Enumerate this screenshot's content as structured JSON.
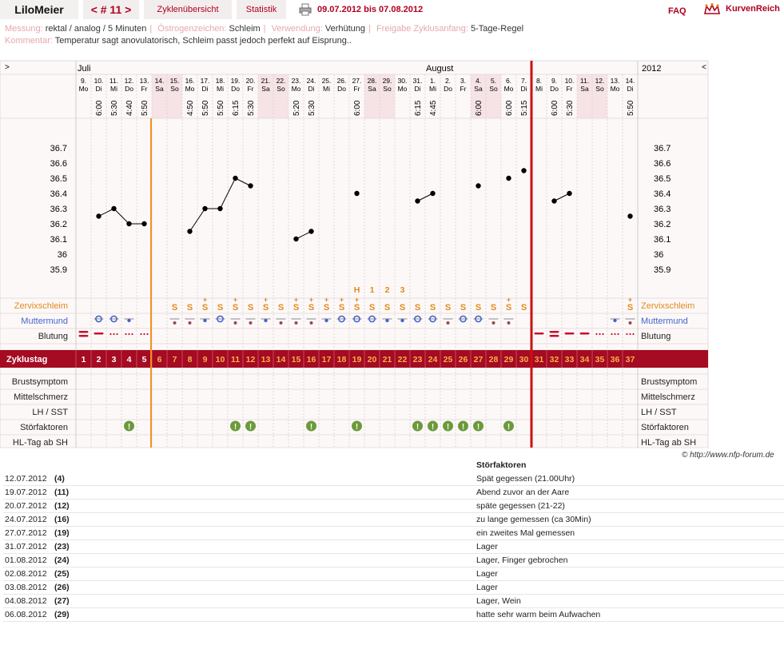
{
  "header": {
    "user_tab": "LiloMeier",
    "cycle_tab": "< # 11 >",
    "overview_tab": "Zyklenübersicht",
    "stats_tab": "Statistik",
    "date_range": "09.07.2012 bis 07.08.2012",
    "faq": "FAQ",
    "brand": "KurvenReich",
    "icons": {
      "print": "printer-icon",
      "brand": "crown-icon"
    }
  },
  "meta": {
    "messung_label": "Messung:",
    "messung_value": "rektal / analog / 5 Minuten",
    "oestrogen_label": "Östrogenzeichen:",
    "oestrogen_value": "Schleim",
    "verwendung_label": "Verwendung:",
    "verwendung_value": "Verhütung",
    "freigabe_label": "Freigabe Zyklusanfang:",
    "freigabe_value": "5-Tage-Regel",
    "kommentar_label": "Kommentar:",
    "kommentar_value": "Temperatur sagt anovulatorisch, Schleim passt jedoch perfekt auf Eisprung.."
  },
  "chart": {
    "nav_left": ">",
    "nav_right": "<",
    "month_july": "Juli",
    "month_august": "August",
    "year": "2012",
    "days": [
      {
        "d": "9.",
        "w": "Mo",
        "t": "",
        "temp": null,
        "cd": "1",
        "mucus": "",
        "mouth": "",
        "bleed": "heavy",
        "dist": false,
        "weekend": false
      },
      {
        "d": "10.",
        "w": "Di",
        "t": "6:00",
        "temp": 36.25,
        "cd": "2",
        "mucus": "",
        "mouth": "open",
        "bleed": "medium",
        "dist": false,
        "weekend": false
      },
      {
        "d": "11.",
        "w": "Mi",
        "t": "5:30",
        "temp": 36.3,
        "cd": "3",
        "mucus": "",
        "mouth": "open",
        "bleed": "spot",
        "dist": false,
        "weekend": false
      },
      {
        "d": "12.",
        "w": "Do",
        "t": "4:40",
        "temp": 36.2,
        "cd": "4",
        "mucus": "",
        "mouth": "small",
        "bleed": "spot",
        "dist": true,
        "weekend": false
      },
      {
        "d": "13.",
        "w": "Fr",
        "t": "5:50",
        "temp": 36.2,
        "cd": "5",
        "mucus": "",
        "mouth": "",
        "bleed": "spot",
        "dist": false,
        "weekend": false
      },
      {
        "d": "14.",
        "w": "Sa",
        "t": "",
        "temp": null,
        "cd": "6",
        "mucus": "",
        "mouth": "",
        "bleed": "",
        "dist": false,
        "weekend": true
      },
      {
        "d": "15.",
        "w": "So",
        "t": "",
        "temp": null,
        "cd": "7",
        "mucus": "S",
        "mouth": "closed",
        "bleed": "",
        "dist": false,
        "weekend": true
      },
      {
        "d": "16.",
        "w": "Mo",
        "t": "4:50",
        "temp": 36.15,
        "cd": "8",
        "mucus": "S",
        "mouth": "closed",
        "bleed": "",
        "dist": false,
        "weekend": false
      },
      {
        "d": "17.",
        "w": "Di",
        "t": "5:50",
        "temp": 36.3,
        "cd": "9",
        "mucus": "S+",
        "mouth": "small",
        "bleed": "",
        "dist": false,
        "weekend": false
      },
      {
        "d": "18.",
        "w": "Mi",
        "t": "5:50",
        "temp": 36.3,
        "cd": "10",
        "mucus": "S",
        "mouth": "open",
        "bleed": "",
        "dist": false,
        "weekend": false
      },
      {
        "d": "19.",
        "w": "Do",
        "t": "6:15",
        "temp": 36.5,
        "cd": "11",
        "mucus": "S+",
        "mouth": "closed",
        "bleed": "",
        "dist": true,
        "weekend": false
      },
      {
        "d": "20.",
        "w": "Fr",
        "t": "5:30",
        "temp": 36.45,
        "cd": "12",
        "mucus": "S",
        "mouth": "closed",
        "bleed": "",
        "dist": true,
        "weekend": false
      },
      {
        "d": "21.",
        "w": "Sa",
        "t": "",
        "temp": null,
        "cd": "13",
        "mucus": "S+",
        "mouth": "small",
        "bleed": "",
        "dist": false,
        "weekend": true
      },
      {
        "d": "22.",
        "w": "So",
        "t": "",
        "temp": null,
        "cd": "14",
        "mucus": "S",
        "mouth": "closed",
        "bleed": "",
        "dist": false,
        "weekend": true
      },
      {
        "d": "23.",
        "w": "Mo",
        "t": "5:20",
        "temp": 36.1,
        "cd": "15",
        "mucus": "S+",
        "mouth": "closed",
        "bleed": "",
        "dist": false,
        "weekend": false
      },
      {
        "d": "24.",
        "w": "Di",
        "t": "5:30",
        "temp": 36.15,
        "cd": "16",
        "mucus": "S+",
        "mouth": "closed",
        "bleed": "",
        "dist": true,
        "weekend": false
      },
      {
        "d": "25.",
        "w": "Mi",
        "t": "",
        "temp": null,
        "cd": "17",
        "mucus": "S+",
        "mouth": "small",
        "bleed": "",
        "dist": false,
        "weekend": false
      },
      {
        "d": "26.",
        "w": "Do",
        "t": "",
        "temp": null,
        "cd": "18",
        "mucus": "S+",
        "mouth": "open",
        "bleed": "",
        "dist": false,
        "weekend": false
      },
      {
        "d": "27.",
        "w": "Fr",
        "t": "6:00",
        "temp": 36.4,
        "cd": "19",
        "mucus": "S+",
        "mouth": "open",
        "bleed": "",
        "dist": true,
        "weekend": false,
        "peak": "H"
      },
      {
        "d": "28.",
        "w": "Sa",
        "t": "",
        "temp": null,
        "cd": "20",
        "mucus": "S",
        "mouth": "open",
        "bleed": "",
        "dist": false,
        "weekend": true,
        "peak": "1"
      },
      {
        "d": "29.",
        "w": "So",
        "t": "",
        "temp": null,
        "cd": "21",
        "mucus": "S",
        "mouth": "small",
        "bleed": "",
        "dist": false,
        "weekend": true,
        "peak": "2"
      },
      {
        "d": "30.",
        "w": "Mo",
        "t": "",
        "temp": null,
        "cd": "22",
        "mucus": "S",
        "mouth": "small",
        "bleed": "",
        "dist": false,
        "weekend": false,
        "peak": "3"
      },
      {
        "d": "31.",
        "w": "Di",
        "t": "6:15",
        "temp": 36.35,
        "cd": "23",
        "mucus": "S",
        "mouth": "open",
        "bleed": "",
        "dist": true,
        "weekend": false
      },
      {
        "d": "1.",
        "w": "Mi",
        "t": "4:45",
        "temp": 36.4,
        "cd": "24",
        "mucus": "S",
        "mouth": "open",
        "bleed": "",
        "dist": true,
        "weekend": false
      },
      {
        "d": "2.",
        "w": "Do",
        "t": "",
        "temp": null,
        "cd": "25",
        "mucus": "S",
        "mouth": "closed",
        "bleed": "",
        "dist": true,
        "weekend": false
      },
      {
        "d": "3.",
        "w": "Fr",
        "t": "",
        "temp": null,
        "cd": "26",
        "mucus": "S",
        "mouth": "open",
        "bleed": "",
        "dist": true,
        "weekend": false
      },
      {
        "d": "4.",
        "w": "Sa",
        "t": "6:00",
        "temp": 36.45,
        "cd": "27",
        "mucus": "S",
        "mouth": "open",
        "bleed": "",
        "dist": true,
        "weekend": true
      },
      {
        "d": "5.",
        "w": "So",
        "t": "",
        "temp": null,
        "cd": "28",
        "mucus": "S",
        "mouth": "closed",
        "bleed": "",
        "dist": false,
        "weekend": true
      },
      {
        "d": "6.",
        "w": "Mo",
        "t": "6:00",
        "temp": 36.5,
        "cd": "29",
        "mucus": "S+",
        "mouth": "closed",
        "bleed": "",
        "dist": true,
        "weekend": false
      },
      {
        "d": "7.",
        "w": "Di",
        "t": "5:15",
        "temp": 36.55,
        "cd": "30",
        "mucus": "S",
        "mouth": "",
        "bleed": "",
        "dist": false,
        "weekend": false
      },
      {
        "d": "8.",
        "w": "Mi",
        "t": "",
        "temp": null,
        "cd": "31",
        "mucus": "",
        "mouth": "",
        "bleed": "medium",
        "dist": false,
        "weekend": false
      },
      {
        "d": "9.",
        "w": "Do",
        "t": "6:00",
        "temp": 36.35,
        "cd": "32",
        "mucus": "",
        "mouth": "",
        "bleed": "heavy",
        "dist": false,
        "weekend": false
      },
      {
        "d": "10.",
        "w": "Fr",
        "t": "5:30",
        "temp": 36.4,
        "cd": "33",
        "mucus": "",
        "mouth": "",
        "bleed": "medium",
        "dist": false,
        "weekend": false
      },
      {
        "d": "11.",
        "w": "Sa",
        "t": "",
        "temp": null,
        "cd": "34",
        "mucus": "",
        "mouth": "",
        "bleed": "medium",
        "dist": false,
        "weekend": true
      },
      {
        "d": "12.",
        "w": "So",
        "t": "",
        "temp": null,
        "cd": "35",
        "mucus": "",
        "mouth": "",
        "bleed": "spot",
        "dist": false,
        "weekend": true
      },
      {
        "d": "13.",
        "w": "Mo",
        "t": "",
        "temp": null,
        "cd": "36",
        "mucus": "",
        "mouth": "small",
        "bleed": "spot",
        "dist": false,
        "weekend": false
      },
      {
        "d": "14.",
        "w": "Di",
        "t": "5:50",
        "temp": 36.25,
        "cd": "37",
        "mucus": "S+",
        "mouth": "closed",
        "bleed": "spot",
        "dist": false,
        "weekend": false
      }
    ],
    "segments": [
      [
        2,
        5
      ],
      [
        8,
        12
      ],
      [
        15,
        16
      ],
      [
        23,
        24
      ],
      [
        32,
        33
      ]
    ],
    "y_ticks": [
      "36.7",
      "36.6",
      "36.5",
      "36.4",
      "36.3",
      "36.2",
      "36.1",
      "36",
      "35.9"
    ],
    "row_labels": {
      "mucus": "Zervixschleim",
      "mouth": "Muttermund",
      "bleed": "Blutung",
      "cycle": "Zyklustag",
      "breast": "Brustsymptom",
      "midpain": "Mittelschmerz",
      "lh": "LH / SST",
      "disturb": "Störfaktoren",
      "hl": "HL-Tag ab SH"
    },
    "copyright": "© http://www.nfp-forum.de",
    "colors": {
      "accent": "#b00020",
      "mucus": "#e08a1e",
      "mouth": "#4466cc",
      "dist": "#6a9a3a",
      "weekend": "#f6e3e5",
      "cycleband": "#a50b22"
    }
  },
  "notes": {
    "title": "Störfaktoren",
    "rows": [
      {
        "date": "12.07.2012",
        "day": "(4)",
        "text": "Spät gegessen (21.00Uhr)"
      },
      {
        "date": "19.07.2012",
        "day": "(11)",
        "text": "Abend zuvor an der Aare"
      },
      {
        "date": "20.07.2012",
        "day": "(12)",
        "text": "späte gegessen (21-22)"
      },
      {
        "date": "24.07.2012",
        "day": "(16)",
        "text": "zu lange gemessen (ca 30Min)"
      },
      {
        "date": "27.07.2012",
        "day": "(19)",
        "text": "ein zweites Mal gemessen"
      },
      {
        "date": "31.07.2012",
        "day": "(23)",
        "text": "Lager"
      },
      {
        "date": "01.08.2012",
        "day": "(24)",
        "text": "Lager, Finger gebrochen"
      },
      {
        "date": "02.08.2012",
        "day": "(25)",
        "text": "Lager"
      },
      {
        "date": "03.08.2012",
        "day": "(26)",
        "text": "Lager"
      },
      {
        "date": "04.08.2012",
        "day": "(27)",
        "text": "Lager, Wein"
      },
      {
        "date": "06.08.2012",
        "day": "(29)",
        "text": "hatte sehr warm beim Aufwachen"
      }
    ]
  }
}
